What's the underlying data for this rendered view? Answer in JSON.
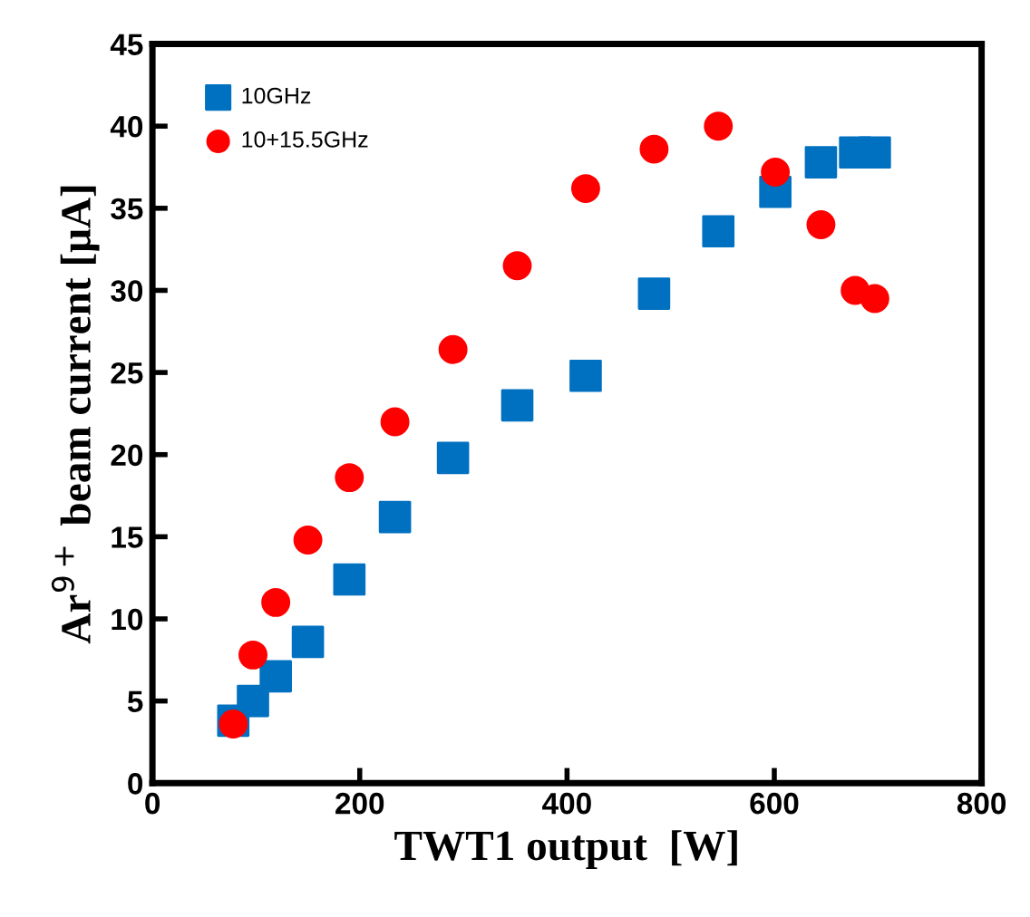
{
  "chart_data": {
    "type": "scatter",
    "xlabel": "TWT1 output  [W]",
    "ylabel": "Ar$^{9+}$ beam current [μA]",
    "xlim": [
      0,
      800
    ],
    "xticks": [
      0,
      200,
      400,
      600,
      800
    ],
    "ylim": [
      0,
      45
    ],
    "yticks": [
      0,
      5,
      10,
      15,
      20,
      25,
      30,
      35,
      40,
      45
    ],
    "grid": false,
    "legend": "top left",
    "series": [
      {
        "name": "10GHz",
        "color": "#0070c0",
        "marker": "square",
        "x": [
          78,
          97,
          119,
          150,
          190,
          234,
          290,
          352,
          418,
          484,
          546,
          601,
          645,
          678,
          697
        ],
        "values": [
          3.8,
          5.0,
          6.5,
          8.6,
          12.4,
          16.2,
          19.8,
          23.0,
          24.8,
          29.8,
          33.6,
          36.0,
          37.8,
          38.4,
          38.4
        ]
      },
      {
        "name": "10+15.5GHz",
        "color": "#ff0000",
        "marker": "circle",
        "x": [
          78,
          97,
          119,
          150,
          190,
          234,
          290,
          352,
          418,
          484,
          546,
          601,
          645,
          678,
          697
        ],
        "values": [
          3.6,
          7.8,
          11.0,
          14.8,
          18.6,
          22.0,
          26.4,
          31.5,
          36.2,
          38.6,
          40.0,
          37.2,
          34.0,
          30.0,
          29.5
        ]
      }
    ]
  }
}
